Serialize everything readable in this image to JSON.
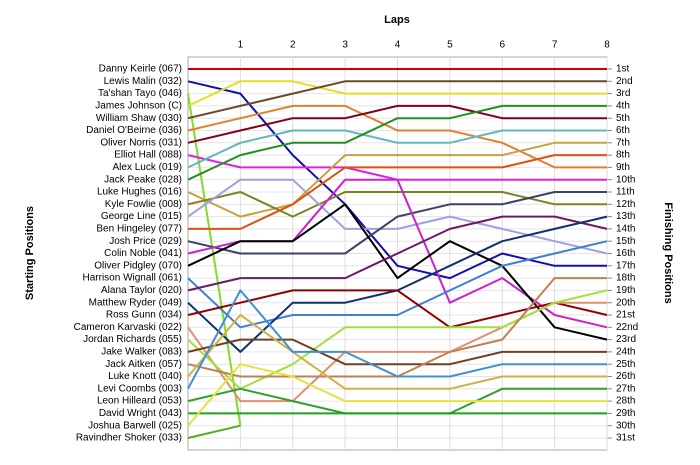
{
  "chart_data": {
    "type": "line",
    "title": "Laps",
    "ylabel": "Starting Positions",
    "y2label": "Finishing Positions",
    "x": [
      0,
      1,
      2,
      3,
      4,
      5,
      6,
      7,
      8
    ],
    "xlim": [
      0,
      8
    ],
    "xticks": [
      1,
      2,
      3,
      4,
      5,
      6,
      7,
      8
    ],
    "ylim": [
      1,
      31
    ],
    "invert_y": true,
    "grid": true,
    "y2lim": [
      1,
      31
    ],
    "y2ticks": [
      {
        "value": 1,
        "label": "1st"
      },
      {
        "value": 2,
        "label": "2nd"
      },
      {
        "value": 3,
        "label": "3rd"
      },
      {
        "value": 4,
        "label": "4th"
      },
      {
        "value": 5,
        "label": "5th"
      },
      {
        "value": 6,
        "label": "6th"
      },
      {
        "value": 7,
        "label": "7th"
      },
      {
        "value": 8,
        "label": "8th"
      },
      {
        "value": 9,
        "label": "9th"
      },
      {
        "value": 10,
        "label": "10th"
      },
      {
        "value": 11,
        "label": "11th"
      },
      {
        "value": 12,
        "label": "12th"
      },
      {
        "value": 13,
        "label": "13th"
      },
      {
        "value": 14,
        "label": "14th"
      },
      {
        "value": 15,
        "label": "15th"
      },
      {
        "value": 16,
        "label": "16th"
      },
      {
        "value": 17,
        "label": "17th"
      },
      {
        "value": 18,
        "label": "18th"
      },
      {
        "value": 19,
        "label": "19th"
      },
      {
        "value": 20,
        "label": "20th"
      },
      {
        "value": 21,
        "label": "21st"
      },
      {
        "value": 22,
        "label": "22nd"
      },
      {
        "value": 23,
        "label": "23rd"
      },
      {
        "value": 24,
        "label": "24th"
      },
      {
        "value": 25,
        "label": "25th"
      },
      {
        "value": 26,
        "label": "26th"
      },
      {
        "value": 27,
        "label": "27th"
      },
      {
        "value": 28,
        "label": "28th"
      },
      {
        "value": 29,
        "label": "29th"
      },
      {
        "value": 30,
        "label": "30th"
      },
      {
        "value": 31,
        "label": "31st"
      }
    ],
    "series": [
      {
        "name": "Danny Keirle (067)",
        "color": "#cc0000",
        "values": [
          1,
          1,
          1,
          1,
          1,
          1,
          1,
          1,
          1
        ]
      },
      {
        "name": "Lewis Malin (032)",
        "color": "#1010b0",
        "values": [
          2,
          3,
          8,
          12,
          17,
          18,
          16,
          17,
          17
        ]
      },
      {
        "name": "Ta'shan Tayo (046)",
        "color": "#7fdd2a",
        "values": [
          3,
          30,
          null,
          null,
          null,
          null,
          null,
          null,
          null
        ]
      },
      {
        "name": "James Johnson (C)",
        "color": "#e0e020",
        "values": [
          4,
          2,
          2,
          3,
          3,
          3,
          3,
          3,
          3
        ]
      },
      {
        "name": "William Shaw (030)",
        "color": "#6b4a2a",
        "values": [
          5,
          4,
          3,
          2,
          2,
          2,
          2,
          2,
          2
        ]
      },
      {
        "name": "Daniel O'Beirne (036)",
        "color": "#e08030",
        "values": [
          6,
          5,
          4,
          4,
          6,
          6,
          7,
          9,
          9
        ]
      },
      {
        "name": "Oliver Norris (031)",
        "color": "#800020",
        "values": [
          7,
          6,
          5,
          5,
          4,
          4,
          5,
          5,
          5
        ]
      },
      {
        "name": "Elliot Hall (088)",
        "color": "#e020e0",
        "values": [
          8,
          9,
          9,
          9,
          10,
          10,
          10,
          10,
          10
        ]
      },
      {
        "name": "Alex Luck (019)",
        "color": "#60b8b8",
        "values": [
          9,
          7,
          6,
          6,
          7,
          7,
          6,
          6,
          6
        ]
      },
      {
        "name": "Jack Peake (028)",
        "color": "#209020",
        "values": [
          10,
          8,
          7,
          7,
          5,
          5,
          4,
          4,
          4
        ]
      },
      {
        "name": "Luke Hughes (016)",
        "color": "#c8a040",
        "values": [
          11,
          13,
          12,
          8,
          8,
          8,
          8,
          7,
          7
        ]
      },
      {
        "name": "Kyle Fowlie (008)",
        "color": "#808020",
        "values": [
          12,
          11,
          13,
          11,
          11,
          11,
          11,
          12,
          12
        ]
      },
      {
        "name": "George Line (015)",
        "color": "#a0a0e0",
        "values": [
          13,
          10,
          10,
          14,
          14,
          13,
          14,
          15,
          16
        ]
      },
      {
        "name": "Ben Hingeley (077)",
        "color": "#e05010",
        "values": [
          14,
          14,
          12,
          9,
          9,
          9,
          9,
          8,
          8
        ]
      },
      {
        "name": "Josh Price (029)",
        "color": "#404060",
        "values": [
          15,
          16,
          16,
          16,
          13,
          12,
          12,
          11,
          11
        ]
      },
      {
        "name": "Colin Noble (041)",
        "color": "#cc22cc",
        "values": [
          16,
          15,
          15,
          10,
          10,
          20,
          18,
          21,
          22
        ]
      },
      {
        "name": "Oliver Pidgley (070)",
        "color": "#000000",
        "values": [
          17,
          15,
          15,
          12,
          18,
          15,
          17,
          22,
          23
        ]
      },
      {
        "name": "Harrison Wignall (061)",
        "color": "#4080d0",
        "values": [
          18,
          22,
          21,
          21,
          21,
          19,
          17,
          16,
          15
        ]
      },
      {
        "name": "Alana Taylor (020)",
        "color": "#6a1a6a",
        "values": [
          19,
          18,
          18,
          18,
          16,
          14,
          13,
          13,
          14
        ]
      },
      {
        "name": "Matthew Ryder (049)",
        "color": "#103070",
        "values": [
          20,
          24,
          20,
          20,
          19,
          17,
          15,
          14,
          13
        ]
      },
      {
        "name": "Ross Gunn (034)",
        "color": "#900000",
        "values": [
          21,
          20,
          19,
          19,
          19,
          22,
          21,
          20,
          21
        ]
      },
      {
        "name": "Cameron Karvaski (022)",
        "color": "#e09070",
        "values": [
          22,
          28,
          28,
          24,
          24,
          24,
          22,
          20,
          20
        ]
      },
      {
        "name": "Jordan Richards (055)",
        "color": "#a0e040",
        "values": [
          23,
          27,
          25,
          22,
          22,
          22,
          22,
          20,
          19
        ]
      },
      {
        "name": "Jake Walker (083)",
        "color": "#704020",
        "values": [
          24,
          23,
          23,
          25,
          25,
          25,
          24,
          24,
          24
        ]
      },
      {
        "name": "Jack Aitken (057)",
        "color": "#c08050",
        "values": [
          25,
          26,
          26,
          26,
          26,
          24,
          23,
          18,
          18
        ]
      },
      {
        "name": "Luke Knott (040)",
        "color": "#d0b040",
        "values": [
          26,
          21,
          24,
          27,
          27,
          27,
          26,
          26,
          26
        ]
      },
      {
        "name": "Levi Coombs (003)",
        "color": "#4090d0",
        "values": [
          27,
          19,
          24,
          24,
          26,
          26,
          25,
          25,
          25
        ]
      },
      {
        "name": "Leon Hilleard (053)",
        "color": "#30a030",
        "values": [
          28,
          27,
          28,
          29,
          29,
          29,
          27,
          27,
          27
        ]
      },
      {
        "name": "David Wright (043)",
        "color": "#20a020",
        "values": [
          29,
          29,
          29,
          29,
          29,
          29,
          29,
          29,
          29
        ]
      },
      {
        "name": "Joshua Barwell (025)",
        "color": "#e8e040",
        "values": [
          30,
          25,
          26,
          28,
          28,
          28,
          28,
          28,
          28
        ]
      },
      {
        "name": "Ravindher Shoker (033)",
        "color": "#5aaa20",
        "values": [
          31,
          30,
          null,
          null,
          null,
          null,
          null,
          null,
          null
        ]
      }
    ]
  }
}
